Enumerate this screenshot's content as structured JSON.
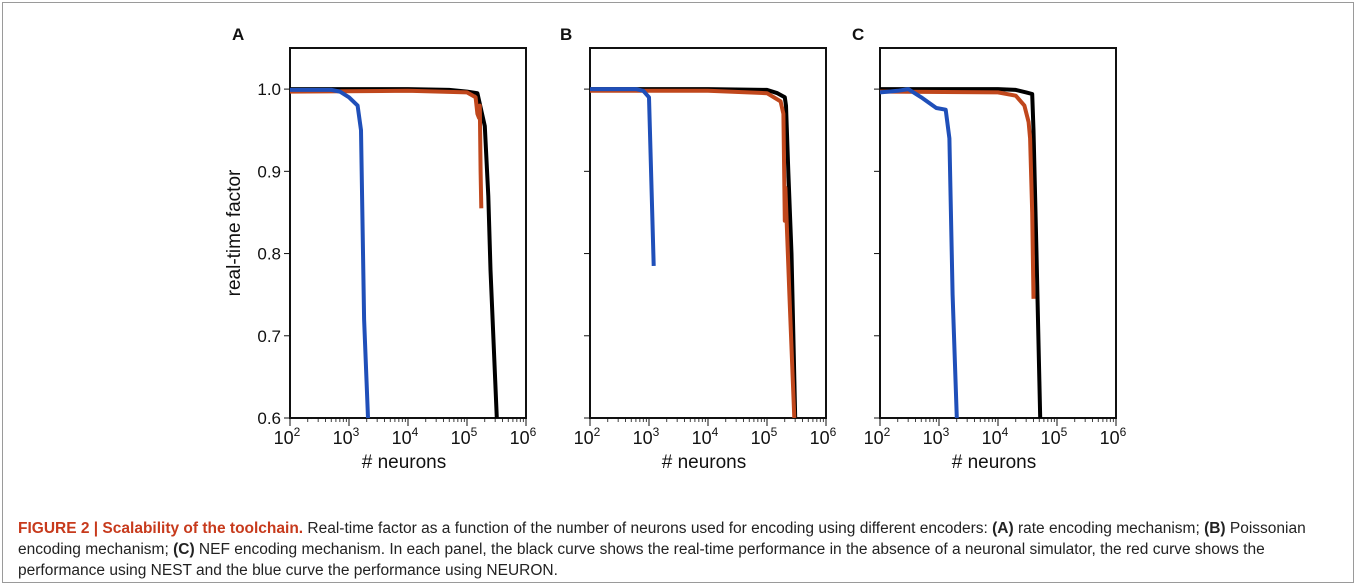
{
  "chart_data": [
    {
      "type": "line",
      "panel_label": "A",
      "xscale": "log",
      "xlim": [
        100,
        1000000
      ],
      "ylim": [
        0.6,
        1.05
      ],
      "xlabel": "# neurons",
      "ylabel": "real-time factor",
      "series": [
        {
          "color": "#000000",
          "x": [
            100,
            10000,
            50000,
            100000,
            150000,
            200000,
            230000,
            250000,
            320000
          ],
          "y": [
            1.0,
            1.0,
            0.999,
            0.997,
            0.995,
            0.955,
            0.87,
            0.78,
            0.6
          ]
        },
        {
          "color": "#c0471c",
          "x": [
            100,
            10000,
            100000,
            140000,
            150000,
            160000,
            165000,
            170000,
            175000
          ],
          "y": [
            0.997,
            0.998,
            0.996,
            0.99,
            0.97,
            0.965,
            0.98,
            0.9,
            0.855
          ]
        },
        {
          "color": "#1f4fb9",
          "x": [
            100,
            500,
            700,
            1000,
            1400,
            1600,
            1800,
            2100
          ],
          "y": [
            0.999,
            0.999,
            0.997,
            0.99,
            0.98,
            0.95,
            0.72,
            0.6
          ]
        }
      ]
    },
    {
      "type": "line",
      "panel_label": "B",
      "xscale": "log",
      "xlim": [
        100,
        1000000
      ],
      "ylim": [
        0.6,
        1.05
      ],
      "xlabel": "# neurons",
      "ylabel": "",
      "series": [
        {
          "color": "#000000",
          "x": [
            100,
            10000,
            100000,
            150000,
            200000,
            210000,
            230000,
            260000,
            300000
          ],
          "y": [
            1.0,
            1.0,
            0.999,
            0.995,
            0.99,
            0.98,
            0.9,
            0.8,
            0.6
          ]
        },
        {
          "color": "#c0471c",
          "x": [
            100,
            10000,
            100000,
            170000,
            190000,
            200000,
            205000,
            240000,
            290000
          ],
          "y": [
            0.998,
            0.998,
            0.995,
            0.985,
            0.97,
            0.84,
            0.88,
            0.75,
            0.6
          ]
        },
        {
          "color": "#1f4fb9",
          "x": [
            100,
            600,
            800,
            1000,
            1200
          ],
          "y": [
            1.0,
            1.0,
            0.998,
            0.99,
            0.785
          ]
        }
      ]
    },
    {
      "type": "line",
      "panel_label": "C",
      "xscale": "log",
      "xlim": [
        100,
        1000000
      ],
      "ylim": [
        0.6,
        1.05
      ],
      "xlabel": "# neurons",
      "ylabel": "",
      "series": [
        {
          "color": "#000000",
          "x": [
            100,
            10000,
            20000,
            30000,
            38000,
            40000,
            45000,
            52000
          ],
          "y": [
            1.0,
            1.0,
            0.999,
            0.996,
            0.994,
            0.95,
            0.8,
            0.6
          ]
        },
        {
          "color": "#c0471c",
          "x": [
            100,
            10000,
            20000,
            28000,
            33000,
            35000,
            38000,
            40000
          ],
          "y": [
            0.997,
            0.996,
            0.992,
            0.98,
            0.96,
            0.94,
            0.85,
            0.745
          ]
        },
        {
          "color": "#1f4fb9",
          "x": [
            100,
            200,
            300,
            500,
            900,
            1300,
            1500,
            1700,
            2000
          ],
          "y": [
            0.996,
            0.998,
            1.0,
            0.99,
            0.977,
            0.975,
            0.94,
            0.75,
            0.6
          ]
        }
      ]
    }
  ],
  "ticks": {
    "y": [
      "1.0",
      "0.9",
      "0.8",
      "0.7",
      "0.6"
    ],
    "x_exponents": [
      "2",
      "3",
      "4",
      "5",
      "6"
    ],
    "x_base": "10"
  },
  "caption": {
    "lead": "FIGURE 2 | Scalability of the toolchain.",
    "text1": " Real-time factor as a function of the number of neurons used for encoding using different encoders: ",
    "a_label": "(A)",
    "a_text": " rate encoding mechanism; ",
    "b_label": "(B)",
    "b_text": " Poissonian encoding mechanism; ",
    "c_label": "(C)",
    "c_text": " NEF encoding mechanism. In each panel, the black curve shows the real-time performance in the absence of a neuronal simulator, the red curve shows the performance using NEST and the blue curve the performance using NEURON."
  }
}
